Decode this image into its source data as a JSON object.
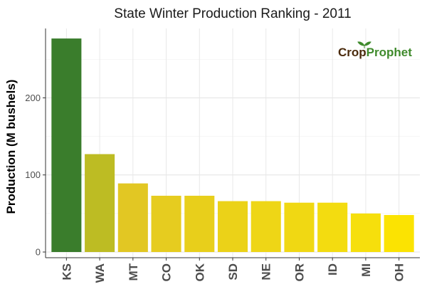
{
  "chart_data": {
    "type": "bar",
    "title": "State Winter  Production Ranking - 2011",
    "xlabel": "",
    "ylabel": "Production (M bushels)",
    "categories": [
      "KS",
      "WA",
      "MT",
      "CO",
      "OK",
      "SD",
      "NE",
      "OR",
      "ID",
      "MI",
      "OH"
    ],
    "values": [
      277,
      127,
      89,
      73,
      73,
      66,
      66,
      64,
      64,
      50,
      48
    ],
    "bar_colors": [
      "#3a7d2c",
      "#bdbc23",
      "#e2c723",
      "#e6cc1f",
      "#e8cf1b",
      "#ebd218",
      "#eed616",
      "#f0d813",
      "#f3dc10",
      "#f6df0c",
      "#fbe302"
    ],
    "ylim": [
      0,
      290
    ],
    "yticks": [
      0,
      100,
      200
    ],
    "grid": true,
    "legend": "none"
  },
  "watermark": {
    "part1": "Crop",
    "part2": "Prophet",
    "color1": "#4a2a0c",
    "color2": "#3f8a2c"
  }
}
